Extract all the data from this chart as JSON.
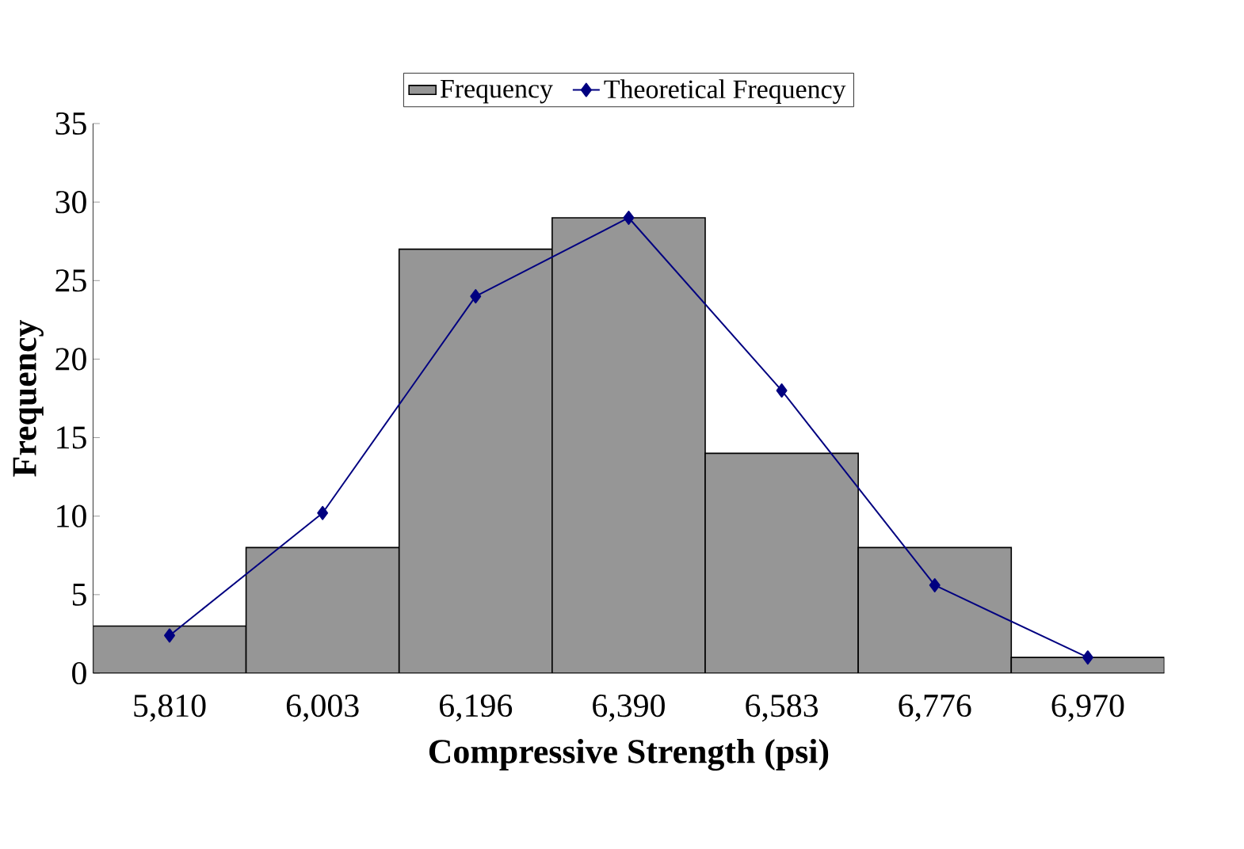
{
  "chart_data": {
    "type": "bar",
    "xlabel": "Compressive Strength (psi)",
    "ylabel": "Frequency",
    "categories": [
      "5,810",
      "6,003",
      "6,196",
      "6,390",
      "6,583",
      "6,776",
      "6,970"
    ],
    "series": [
      {
        "name": "Frequency",
        "color": "#969696",
        "values": [
          3,
          8,
          27,
          29,
          14,
          8,
          1
        ]
      },
      {
        "name": "Theoretical Frequency",
        "type": "line",
        "color": "#000080",
        "values": [
          2.4,
          10.2,
          24,
          29,
          18,
          5.6,
          1.0
        ]
      }
    ],
    "ylim": [
      0,
      35
    ],
    "yticks": [
      0,
      5,
      10,
      15,
      20,
      25,
      30,
      35
    ],
    "legend": "top",
    "marker": "diamond"
  }
}
